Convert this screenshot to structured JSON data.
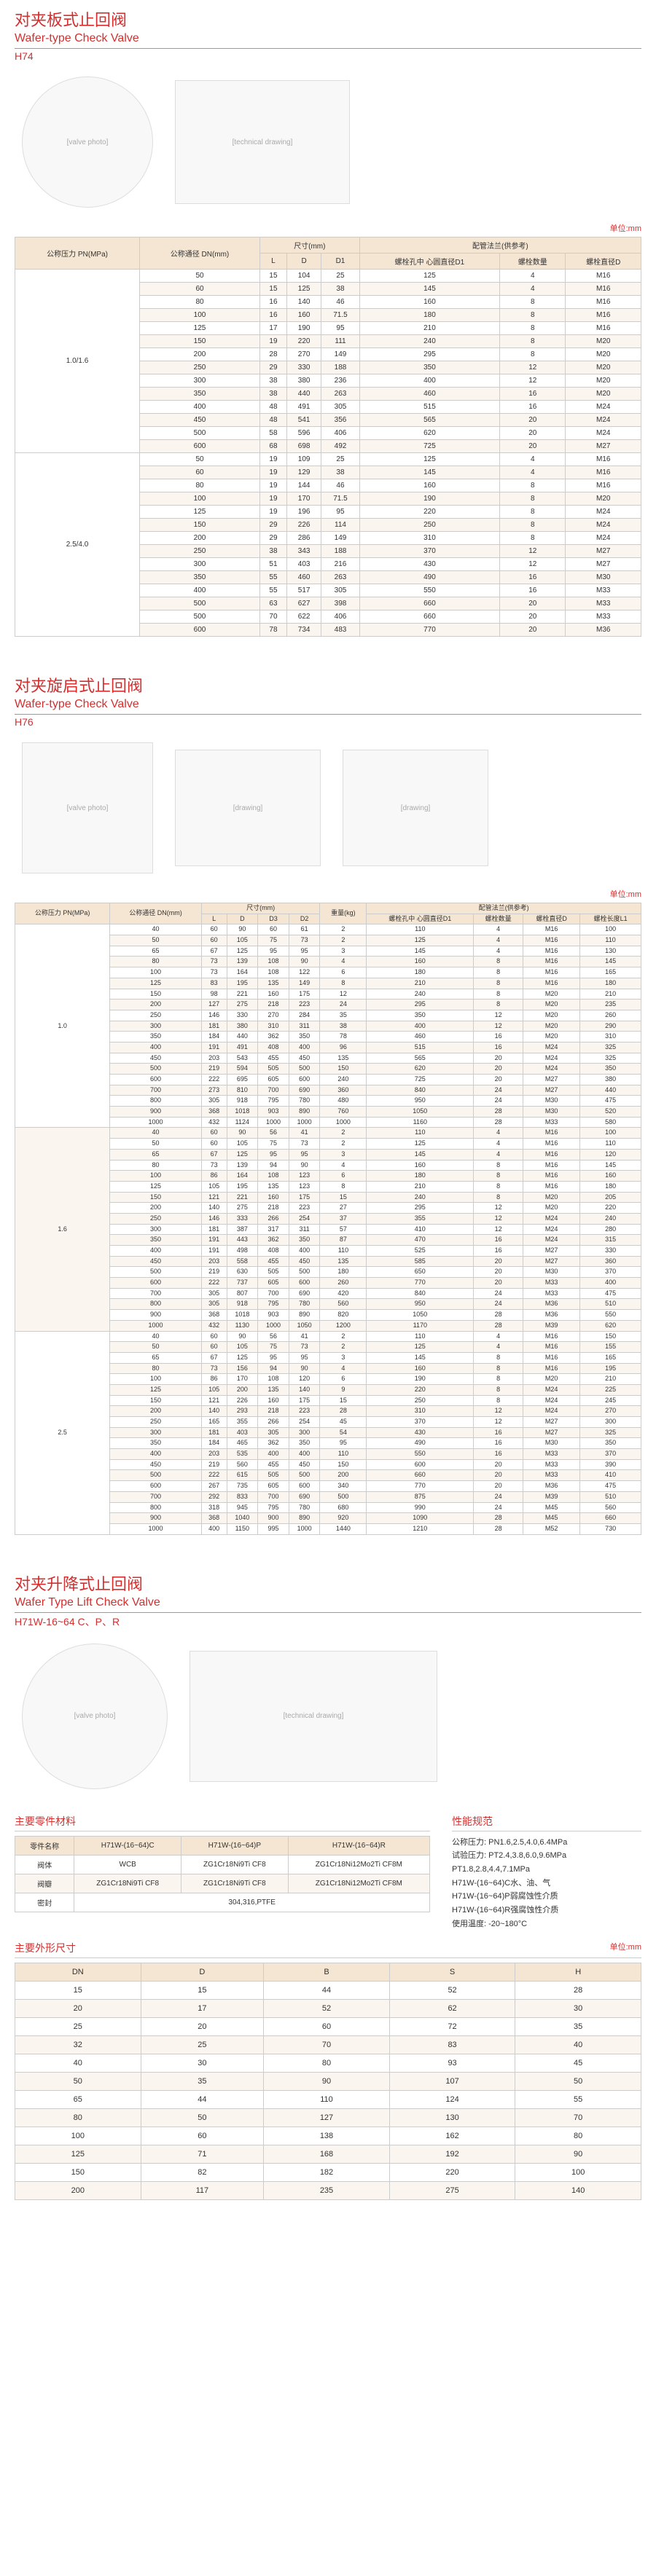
{
  "h74": {
    "title_cn": "对夹板式止回阀",
    "title_en": "Wafer-type Check Valve",
    "model": "H74",
    "unit": "单位:mm",
    "headers": {
      "pn": "公称压力\nPN(MPa)",
      "dn": "公称通径\nDN(mm)",
      "dim_group": "尺寸(mm)",
      "L": "L",
      "D": "D",
      "D1": "D1",
      "flange_group": "配管法兰(供参考)",
      "bolt_circle": "螺栓孔中\n心圆直径D1",
      "bolt_count": "螺栓数量",
      "bolt_dia": "螺栓直径D"
    },
    "groups": [
      {
        "pn": "1.0/1.6",
        "rows": [
          [
            "50",
            "15",
            "104",
            "25",
            "125",
            "4",
            "M16"
          ],
          [
            "60",
            "15",
            "125",
            "38",
            "145",
            "4",
            "M16"
          ],
          [
            "80",
            "16",
            "140",
            "46",
            "160",
            "8",
            "M16"
          ],
          [
            "100",
            "16",
            "160",
            "71.5",
            "180",
            "8",
            "M16"
          ],
          [
            "125",
            "17",
            "190",
            "95",
            "210",
            "8",
            "M16"
          ],
          [
            "150",
            "19",
            "220",
            "111",
            "240",
            "8",
            "M20"
          ],
          [
            "200",
            "28",
            "270",
            "149",
            "295",
            "8",
            "M20"
          ],
          [
            "250",
            "29",
            "330",
            "188",
            "350",
            "12",
            "M20"
          ],
          [
            "300",
            "38",
            "380",
            "236",
            "400",
            "12",
            "M20"
          ],
          [
            "350",
            "38",
            "440",
            "263",
            "460",
            "16",
            "M20"
          ],
          [
            "400",
            "48",
            "491",
            "305",
            "515",
            "16",
            "M24"
          ],
          [
            "450",
            "48",
            "541",
            "356",
            "565",
            "20",
            "M24"
          ],
          [
            "500",
            "58",
            "596",
            "406",
            "620",
            "20",
            "M24"
          ],
          [
            "600",
            "68",
            "698",
            "492",
            "725",
            "20",
            "M27"
          ]
        ]
      },
      {
        "pn": "2.5/4.0",
        "rows": [
          [
            "50",
            "19",
            "109",
            "25",
            "125",
            "4",
            "M16"
          ],
          [
            "60",
            "19",
            "129",
            "38",
            "145",
            "4",
            "M16"
          ],
          [
            "80",
            "19",
            "144",
            "46",
            "160",
            "8",
            "M16"
          ],
          [
            "100",
            "19",
            "170",
            "71.5",
            "190",
            "8",
            "M20"
          ],
          [
            "125",
            "19",
            "196",
            "95",
            "220",
            "8",
            "M24"
          ],
          [
            "150",
            "29",
            "226",
            "114",
            "250",
            "8",
            "M24"
          ],
          [
            "200",
            "29",
            "286",
            "149",
            "310",
            "8",
            "M24"
          ],
          [
            "250",
            "38",
            "343",
            "188",
            "370",
            "12",
            "M27"
          ],
          [
            "300",
            "51",
            "403",
            "216",
            "430",
            "12",
            "M27"
          ],
          [
            "350",
            "55",
            "460",
            "263",
            "490",
            "16",
            "M30"
          ],
          [
            "400",
            "55",
            "517",
            "305",
            "550",
            "16",
            "M33"
          ],
          [
            "500",
            "63",
            "627",
            "398",
            "660",
            "20",
            "M33"
          ],
          [
            "500",
            "70",
            "622",
            "406",
            "660",
            "20",
            "M33"
          ],
          [
            "600",
            "78",
            "734",
            "483",
            "770",
            "20",
            "M36"
          ]
        ]
      }
    ]
  },
  "h76": {
    "title_cn": "对夹旋启式止回阀",
    "title_en": "Wafer-type Check Valve",
    "model": "H76",
    "unit": "单位:mm",
    "headers": {
      "pn": "公称压力\nPN(MPa)",
      "dn": "公称通径\nDN(mm)",
      "dim_group": "尺寸(mm)",
      "L": "L",
      "D": "D",
      "D3": "D3",
      "D2": "D2",
      "weight": "重量(kg)",
      "flange_group": "配管法兰(供参考)",
      "bolt_circle": "螺栓孔中\n心圆直径D1",
      "bolt_count": "螺栓数量",
      "bolt_dia": "螺栓直径D",
      "bolt_len": "螺栓长度L1"
    },
    "groups": [
      {
        "pn": "1.0",
        "rows": [
          [
            "40",
            "60",
            "90",
            "60",
            "61",
            "2",
            "110",
            "4",
            "M16",
            "100"
          ],
          [
            "50",
            "60",
            "105",
            "75",
            "73",
            "2",
            "125",
            "4",
            "M16",
            "110"
          ],
          [
            "65",
            "67",
            "125",
            "95",
            "95",
            "3",
            "145",
            "4",
            "M16",
            "130"
          ],
          [
            "80",
            "73",
            "139",
            "108",
            "90",
            "4",
            "160",
            "8",
            "M16",
            "145"
          ],
          [
            "100",
            "73",
            "164",
            "108",
            "122",
            "6",
            "180",
            "8",
            "M16",
            "165"
          ],
          [
            "125",
            "83",
            "195",
            "135",
            "149",
            "8",
            "210",
            "8",
            "M16",
            "180"
          ],
          [
            "150",
            "98",
            "221",
            "160",
            "175",
            "12",
            "240",
            "8",
            "M20",
            "210"
          ],
          [
            "200",
            "127",
            "275",
            "218",
            "223",
            "24",
            "295",
            "8",
            "M20",
            "235"
          ],
          [
            "250",
            "146",
            "330",
            "270",
            "284",
            "35",
            "350",
            "12",
            "M20",
            "260"
          ],
          [
            "300",
            "181",
            "380",
            "310",
            "311",
            "38",
            "400",
            "12",
            "M20",
            "290"
          ],
          [
            "350",
            "184",
            "440",
            "362",
            "350",
            "78",
            "460",
            "16",
            "M20",
            "310"
          ],
          [
            "400",
            "191",
            "491",
            "408",
            "400",
            "96",
            "515",
            "16",
            "M24",
            "325"
          ],
          [
            "450",
            "203",
            "543",
            "455",
            "450",
            "135",
            "565",
            "20",
            "M24",
            "325"
          ],
          [
            "500",
            "219",
            "594",
            "505",
            "500",
            "150",
            "620",
            "20",
            "M24",
            "350"
          ],
          [
            "600",
            "222",
            "695",
            "605",
            "600",
            "240",
            "725",
            "20",
            "M27",
            "380"
          ],
          [
            "700",
            "273",
            "810",
            "700",
            "690",
            "360",
            "840",
            "24",
            "M27",
            "440"
          ],
          [
            "800",
            "305",
            "918",
            "795",
            "780",
            "480",
            "950",
            "24",
            "M30",
            "475"
          ],
          [
            "900",
            "368",
            "1018",
            "903",
            "890",
            "760",
            "1050",
            "28",
            "M30",
            "520"
          ],
          [
            "1000",
            "432",
            "1124",
            "1000",
            "1000",
            "1000",
            "1160",
            "28",
            "M33",
            "580"
          ]
        ]
      },
      {
        "pn": "1.6",
        "rows": [
          [
            "40",
            "60",
            "90",
            "56",
            "41",
            "2",
            "110",
            "4",
            "M16",
            "100"
          ],
          [
            "50",
            "60",
            "105",
            "75",
            "73",
            "2",
            "125",
            "4",
            "M16",
            "110"
          ],
          [
            "65",
            "67",
            "125",
            "95",
            "95",
            "3",
            "145",
            "4",
            "M16",
            "120"
          ],
          [
            "80",
            "73",
            "139",
            "94",
            "90",
            "4",
            "160",
            "8",
            "M16",
            "145"
          ],
          [
            "100",
            "86",
            "164",
            "108",
            "123",
            "6",
            "180",
            "8",
            "M16",
            "160"
          ],
          [
            "125",
            "105",
            "195",
            "135",
            "123",
            "8",
            "210",
            "8",
            "M16",
            "180"
          ],
          [
            "150",
            "121",
            "221",
            "160",
            "175",
            "15",
            "240",
            "8",
            "M20",
            "205"
          ],
          [
            "200",
            "140",
            "275",
            "218",
            "223",
            "27",
            "295",
            "12",
            "M20",
            "220"
          ],
          [
            "250",
            "146",
            "333",
            "266",
            "254",
            "37",
            "355",
            "12",
            "M24",
            "240"
          ],
          [
            "300",
            "181",
            "387",
            "317",
            "311",
            "57",
            "410",
            "12",
            "M24",
            "280"
          ],
          [
            "350",
            "191",
            "443",
            "362",
            "350",
            "87",
            "470",
            "16",
            "M24",
            "315"
          ],
          [
            "400",
            "191",
            "498",
            "408",
            "400",
            "110",
            "525",
            "16",
            "M27",
            "330"
          ],
          [
            "450",
            "203",
            "558",
            "455",
            "450",
            "135",
            "585",
            "20",
            "M27",
            "360"
          ],
          [
            "500",
            "219",
            "630",
            "505",
            "500",
            "180",
            "650",
            "20",
            "M30",
            "370"
          ],
          [
            "600",
            "222",
            "737",
            "605",
            "600",
            "260",
            "770",
            "20",
            "M33",
            "400"
          ],
          [
            "700",
            "305",
            "807",
            "700",
            "690",
            "420",
            "840",
            "24",
            "M33",
            "475"
          ],
          [
            "800",
            "305",
            "918",
            "795",
            "780",
            "560",
            "950",
            "24",
            "M36",
            "510"
          ],
          [
            "900",
            "368",
            "1018",
            "903",
            "890",
            "820",
            "1050",
            "28",
            "M36",
            "550"
          ],
          [
            "1000",
            "432",
            "1130",
            "1000",
            "1050",
            "1200",
            "1170",
            "28",
            "M39",
            "620"
          ]
        ]
      },
      {
        "pn": "2.5",
        "rows": [
          [
            "40",
            "60",
            "90",
            "56",
            "41",
            "2",
            "110",
            "4",
            "M16",
            "150"
          ],
          [
            "50",
            "60",
            "105",
            "75",
            "73",
            "2",
            "125",
            "4",
            "M16",
            "155"
          ],
          [
            "65",
            "67",
            "125",
            "95",
            "95",
            "3",
            "145",
            "8",
            "M16",
            "165"
          ],
          [
            "80",
            "73",
            "156",
            "94",
            "90",
            "4",
            "160",
            "8",
            "M16",
            "195"
          ],
          [
            "100",
            "86",
            "170",
            "108",
            "120",
            "6",
            "190",
            "8",
            "M20",
            "210"
          ],
          [
            "125",
            "105",
            "200",
            "135",
            "140",
            "9",
            "220",
            "8",
            "M24",
            "225"
          ],
          [
            "150",
            "121",
            "226",
            "160",
            "175",
            "15",
            "250",
            "8",
            "M24",
            "245"
          ],
          [
            "200",
            "140",
            "293",
            "218",
            "223",
            "28",
            "310",
            "12",
            "M24",
            "270"
          ],
          [
            "250",
            "165",
            "355",
            "266",
            "254",
            "45",
            "370",
            "12",
            "M27",
            "300"
          ],
          [
            "300",
            "181",
            "403",
            "305",
            "300",
            "54",
            "430",
            "16",
            "M27",
            "325"
          ],
          [
            "350",
            "184",
            "465",
            "362",
            "350",
            "95",
            "490",
            "16",
            "M30",
            "350"
          ],
          [
            "400",
            "203",
            "535",
            "400",
            "400",
            "110",
            "550",
            "16",
            "M33",
            "370"
          ],
          [
            "450",
            "219",
            "560",
            "455",
            "450",
            "150",
            "600",
            "20",
            "M33",
            "390"
          ],
          [
            "500",
            "222",
            "615",
            "505",
            "500",
            "200",
            "660",
            "20",
            "M33",
            "410"
          ],
          [
            "600",
            "267",
            "735",
            "605",
            "600",
            "340",
            "770",
            "20",
            "M36",
            "475"
          ],
          [
            "700",
            "292",
            "833",
            "700",
            "690",
            "500",
            "875",
            "24",
            "M39",
            "510"
          ],
          [
            "800",
            "318",
            "945",
            "795",
            "780",
            "680",
            "990",
            "24",
            "M45",
            "560"
          ],
          [
            "900",
            "368",
            "1040",
            "900",
            "890",
            "920",
            "1090",
            "28",
            "M45",
            "660"
          ],
          [
            "1000",
            "400",
            "1150",
            "995",
            "1000",
            "1440",
            "1210",
            "28",
            "M52",
            "730"
          ]
        ]
      }
    ]
  },
  "h71": {
    "title_cn": "对夹升降式止回阀",
    "title_en": "Wafer Type Lift Check Valve",
    "model": "H71W-16~64 C、P、R",
    "materials_heading": "主要零件材料",
    "spec_heading": "性能规范",
    "dim_heading": "主要外形尺寸",
    "unit": "单位:mm",
    "mat_headers": [
      "零件名称",
      "H71W-(16~64)C",
      "H71W-(16~64)P",
      "H71W-(16~64)R"
    ],
    "mat_rows": [
      [
        "阀体",
        "WCB",
        "ZG1Cr18Ni9Ti CF8",
        "ZG1Cr18Ni12Mo2Ti CF8M"
      ],
      [
        "阀瓣",
        "ZG1Cr18Ni9Ti CF8",
        "ZG1Cr18Ni9Ti CF8",
        "ZG1Cr18Ni12Mo2Ti CF8M"
      ],
      [
        "密封",
        "304,316,PTFE",
        "",
        ""
      ]
    ],
    "specs": [
      "公称压力: PN1.6,2.5,4.0,6.4MPa",
      "试验压力: PT2.4,3.8,6.0,9.6MPa",
      "              PT1.8,2.8,4.4,7.1MPa",
      "H71W-(16~64)C水、油、气",
      "H71W-(16~64)P弱腐蚀性介质",
      "H71W-(16~64)R强腐蚀性介质",
      "使用温度: -20~180°C"
    ],
    "dim_headers": [
      "DN",
      "D",
      "B",
      "S",
      "H"
    ],
    "dim_rows": [
      [
        "15",
        "15",
        "44",
        "52",
        "28"
      ],
      [
        "20",
        "17",
        "52",
        "62",
        "30"
      ],
      [
        "25",
        "20",
        "60",
        "72",
        "35"
      ],
      [
        "32",
        "25",
        "70",
        "83",
        "40"
      ],
      [
        "40",
        "30",
        "80",
        "93",
        "45"
      ],
      [
        "50",
        "35",
        "90",
        "107",
        "50"
      ],
      [
        "65",
        "44",
        "110",
        "124",
        "55"
      ],
      [
        "80",
        "50",
        "127",
        "130",
        "70"
      ],
      [
        "100",
        "60",
        "138",
        "162",
        "80"
      ],
      [
        "125",
        "71",
        "168",
        "192",
        "90"
      ],
      [
        "150",
        "82",
        "182",
        "220",
        "100"
      ],
      [
        "200",
        "117",
        "235",
        "275",
        "140"
      ]
    ]
  }
}
